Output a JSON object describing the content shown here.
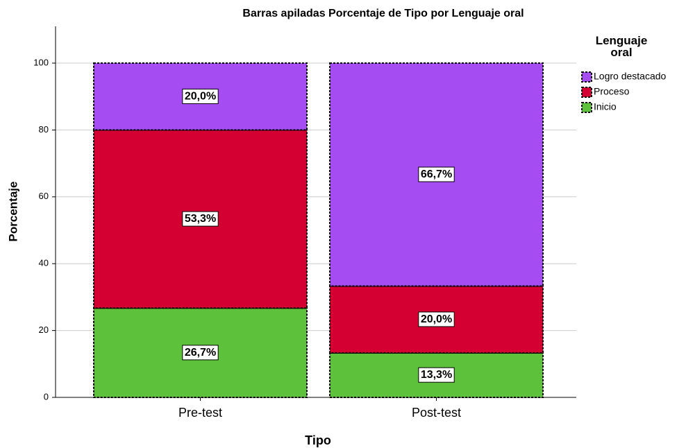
{
  "chart_data": {
    "type": "stacked_bar",
    "title": "Barras apiladas Porcentaje de Tipo por Lenguaje oral",
    "x_label": "Tipo",
    "y_label": "Porcentaje",
    "legend_title": "Lenguaje oral",
    "categories": [
      "Pre-test",
      "Post-test"
    ],
    "series": [
      {
        "name": "Inicio",
        "color": "#5ec13b",
        "values": [
          26.7,
          13.3
        ],
        "value_labels": [
          "26,7%",
          "13,3%"
        ]
      },
      {
        "name": "Proceso",
        "color": "#d50032",
        "values": [
          53.3,
          20.0
        ],
        "value_labels": [
          "53,3%",
          "20,0%"
        ]
      },
      {
        "name": "Logro destacado",
        "color": "#a64cf3",
        "values": [
          20.0,
          66.7
        ],
        "value_labels": [
          "20,0%",
          "66,7%"
        ]
      }
    ],
    "ylim": [
      0,
      111
    ],
    "yticks": [
      0,
      20,
      40,
      60,
      80,
      100
    ],
    "grid": true,
    "legend": "right"
  }
}
